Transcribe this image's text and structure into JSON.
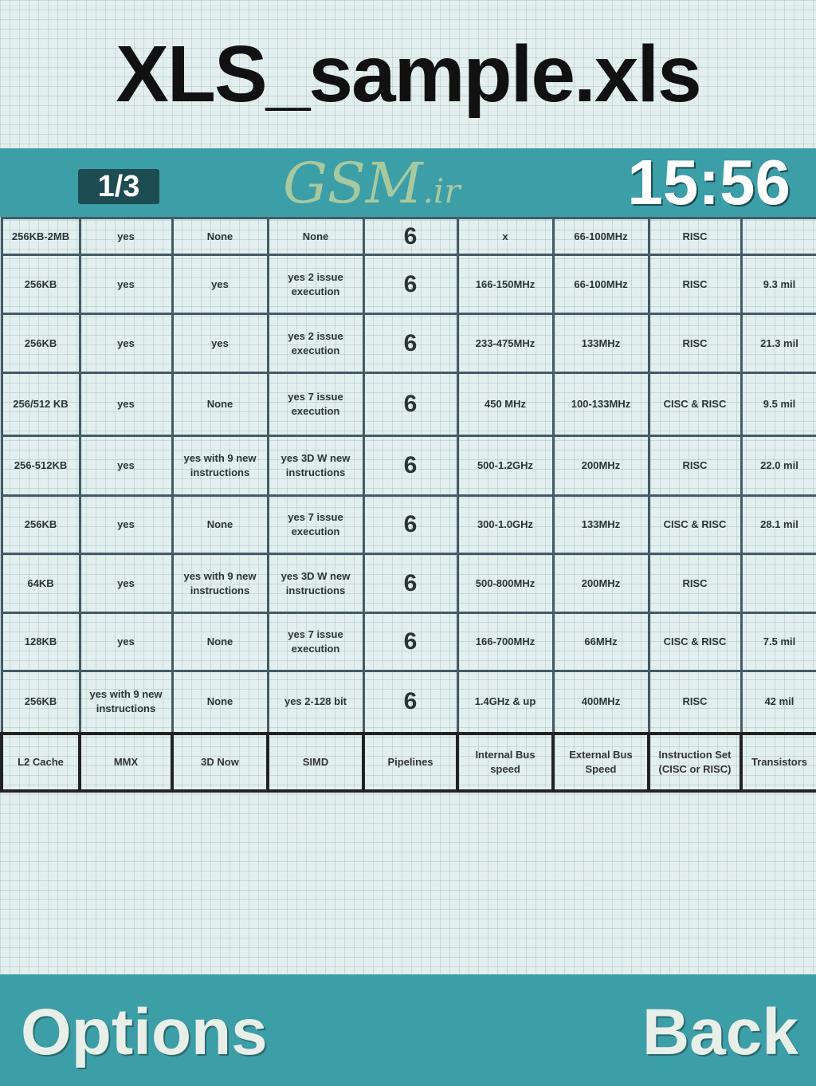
{
  "title": "XLS_sample.xls",
  "status": {
    "page": "1/3",
    "watermark": "GSM.ir",
    "time": "15:56"
  },
  "table": {
    "rows": [
      [
        "256KB-2MB",
        "yes",
        "None",
        "None",
        "6",
        "x",
        "66-100MHz",
        "RISC",
        ""
      ],
      [
        "256KB",
        "yes",
        "yes",
        "yes 2 issue execution",
        "6",
        "166-150MHz",
        "66-100MHz",
        "RISC",
        "9.3 mil"
      ],
      [
        "256KB",
        "yes",
        "yes",
        "yes 2 issue execution",
        "6",
        "233-475MHz",
        "133MHz",
        "RISC",
        "21.3 mil"
      ],
      [
        "256/512 KB",
        "yes",
        "None",
        "yes 7 issue execution",
        "6",
        "450 MHz",
        "100-133MHz",
        "CISC & RISC",
        "9.5 mil"
      ],
      [
        "256-512KB",
        "yes",
        "yes with 9 new instructions",
        "yes 3D W new instructions",
        "6",
        "500-1.2GHz",
        "200MHz",
        "RISC",
        "22.0 mil"
      ],
      [
        "256KB",
        "yes",
        "None",
        "yes 7 issue execution",
        "6",
        "300-1.0GHz",
        "133MHz",
        "CISC & RISC",
        "28.1 mil"
      ],
      [
        "64KB",
        "yes",
        "yes with 9 new instructions",
        "yes 3D W new instructions",
        "6",
        "500-800MHz",
        "200MHz",
        "RISC",
        ""
      ],
      [
        "128KB",
        "yes",
        "None",
        "yes 7 issue execution",
        "6",
        "166-700MHz",
        "66MHz",
        "CISC & RISC",
        "7.5 mil"
      ],
      [
        "256KB",
        "yes with 9 new instructions",
        "None",
        "yes 2-128 bit",
        "6",
        "1.4GHz & up",
        "400MHz",
        "RISC",
        "42 mil"
      ]
    ],
    "headers": [
      "L2 Cache",
      "MMX",
      "3D Now",
      "SIMD",
      "Pipelines",
      "Internal Bus speed",
      "External Bus Speed",
      "Instruction Set (CISC or RISC)",
      "Transistors"
    ]
  },
  "softkeys": {
    "left": "Options",
    "right": "Back"
  }
}
